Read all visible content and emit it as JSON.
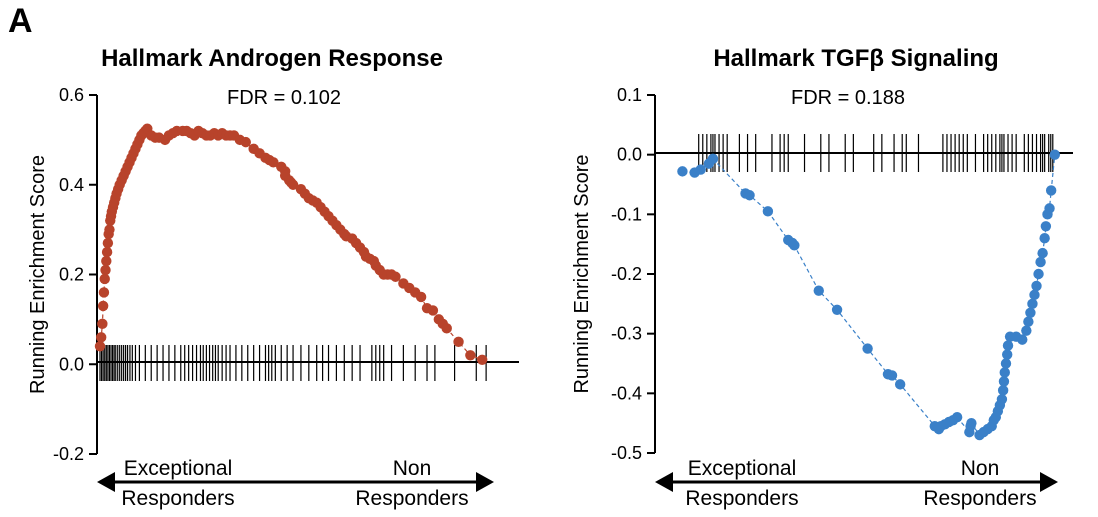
{
  "panel_label": "A",
  "colors": {
    "left": "#b8432b",
    "right": "#3a80c8",
    "axis": "#000000"
  },
  "chart_data": [
    {
      "type": "scatter",
      "title": "Hallmark Androgen Response",
      "annotation": "FDR = 0.102",
      "ylabel": "Running Enrichment Score",
      "ylim": [
        -0.2,
        0.6
      ],
      "yticks": [
        "0.6",
        "0.4",
        "0.2",
        "0.0",
        "-0.2"
      ],
      "xlim": [
        0,
        1
      ],
      "x_left_label": [
        "Exceptional",
        "Responders"
      ],
      "x_right_label": [
        "Non",
        "Responders"
      ],
      "color": "#b8432b",
      "points": [
        [
          0.0,
          0.04
        ],
        [
          0.003,
          0.06
        ],
        [
          0.006,
          0.09
        ],
        [
          0.008,
          0.13
        ],
        [
          0.01,
          0.16
        ],
        [
          0.012,
          0.19
        ],
        [
          0.014,
          0.21
        ],
        [
          0.016,
          0.23
        ],
        [
          0.018,
          0.25
        ],
        [
          0.02,
          0.27
        ],
        [
          0.022,
          0.29
        ],
        [
          0.024,
          0.3
        ],
        [
          0.026,
          0.32
        ],
        [
          0.028,
          0.33
        ],
        [
          0.03,
          0.34
        ],
        [
          0.033,
          0.35
        ],
        [
          0.036,
          0.36
        ],
        [
          0.039,
          0.37
        ],
        [
          0.042,
          0.38
        ],
        [
          0.046,
          0.39
        ],
        [
          0.05,
          0.4
        ],
        [
          0.055,
          0.41
        ],
        [
          0.06,
          0.42
        ],
        [
          0.065,
          0.43
        ],
        [
          0.07,
          0.44
        ],
        [
          0.075,
          0.45
        ],
        [
          0.08,
          0.46
        ],
        [
          0.085,
          0.47
        ],
        [
          0.09,
          0.48
        ],
        [
          0.095,
          0.49
        ],
        [
          0.1,
          0.5
        ],
        [
          0.105,
          0.51
        ],
        [
          0.11,
          0.515
        ],
        [
          0.115,
          0.52
        ],
        [
          0.12,
          0.525
        ],
        [
          0.13,
          0.51
        ],
        [
          0.14,
          0.505
        ],
        [
          0.15,
          0.505
        ],
        [
          0.165,
          0.5
        ],
        [
          0.175,
          0.51
        ],
        [
          0.185,
          0.515
        ],
        [
          0.195,
          0.52
        ],
        [
          0.21,
          0.52
        ],
        [
          0.22,
          0.52
        ],
        [
          0.23,
          0.515
        ],
        [
          0.24,
          0.51
        ],
        [
          0.25,
          0.52
        ],
        [
          0.26,
          0.515
        ],
        [
          0.27,
          0.51
        ],
        [
          0.28,
          0.51
        ],
        [
          0.29,
          0.515
        ],
        [
          0.3,
          0.51
        ],
        [
          0.31,
          0.515
        ],
        [
          0.32,
          0.51
        ],
        [
          0.33,
          0.51
        ],
        [
          0.34,
          0.51
        ],
        [
          0.355,
          0.5
        ],
        [
          0.37,
          0.495
        ],
        [
          0.39,
          0.48
        ],
        [
          0.405,
          0.47
        ],
        [
          0.42,
          0.46
        ],
        [
          0.43,
          0.455
        ],
        [
          0.44,
          0.45
        ],
        [
          0.46,
          0.44
        ],
        [
          0.47,
          0.43
        ],
        [
          0.47,
          0.42
        ],
        [
          0.48,
          0.41
        ],
        [
          0.485,
          0.405
        ],
        [
          0.49,
          0.4
        ],
        [
          0.51,
          0.39
        ],
        [
          0.52,
          0.38
        ],
        [
          0.53,
          0.37
        ],
        [
          0.54,
          0.365
        ],
        [
          0.55,
          0.36
        ],
        [
          0.56,
          0.35
        ],
        [
          0.57,
          0.34
        ],
        [
          0.58,
          0.33
        ],
        [
          0.59,
          0.32
        ],
        [
          0.6,
          0.31
        ],
        [
          0.61,
          0.3
        ],
        [
          0.62,
          0.29
        ],
        [
          0.625,
          0.285
        ],
        [
          0.64,
          0.28
        ],
        [
          0.65,
          0.27
        ],
        [
          0.66,
          0.26
        ],
        [
          0.67,
          0.25
        ],
        [
          0.675,
          0.24
        ],
        [
          0.685,
          0.235
        ],
        [
          0.695,
          0.23
        ],
        [
          0.7,
          0.22
        ],
        [
          0.71,
          0.21
        ],
        [
          0.72,
          0.2
        ],
        [
          0.73,
          0.2
        ],
        [
          0.74,
          0.2
        ],
        [
          0.75,
          0.195
        ],
        [
          0.77,
          0.18
        ],
        [
          0.785,
          0.17
        ],
        [
          0.8,
          0.16
        ],
        [
          0.815,
          0.15
        ],
        [
          0.83,
          0.125
        ],
        [
          0.845,
          0.12
        ],
        [
          0.86,
          0.1
        ],
        [
          0.87,
          0.09
        ],
        [
          0.88,
          0.08
        ],
        [
          0.91,
          0.05
        ],
        [
          0.94,
          0.02
        ],
        [
          0.97,
          0.01
        ]
      ],
      "hits": [
        0.0,
        0.004,
        0.008,
        0.012,
        0.016,
        0.02,
        0.024,
        0.028,
        0.032,
        0.036,
        0.04,
        0.045,
        0.05,
        0.055,
        0.06,
        0.065,
        0.07,
        0.076,
        0.082,
        0.09,
        0.1,
        0.115,
        0.13,
        0.145,
        0.16,
        0.175,
        0.19,
        0.205,
        0.215,
        0.225,
        0.235,
        0.245,
        0.255,
        0.262,
        0.27,
        0.278,
        0.286,
        0.293,
        0.3,
        0.31,
        0.32,
        0.33,
        0.345,
        0.36,
        0.375,
        0.39,
        0.405,
        0.42,
        0.428,
        0.436,
        0.445,
        0.46,
        0.475,
        0.49,
        0.51,
        0.53,
        0.55,
        0.565,
        0.58,
        0.6,
        0.62,
        0.64,
        0.66,
        0.69,
        0.7,
        0.71,
        0.72,
        0.74,
        0.77,
        0.8,
        0.83,
        0.85,
        0.9,
        0.955,
        0.98
      ]
    },
    {
      "type": "scatter",
      "title": "Hallmark TGFβ Signaling",
      "annotation": "FDR = 0.188",
      "ylabel": "Running Enrichment Score",
      "ylim": [
        -0.5,
        0.1
      ],
      "yticks": [
        "0.1",
        "0.0",
        "-0.1",
        "-0.2",
        "-0.3",
        "-0.4",
        "-0.5"
      ],
      "xlim": [
        0,
        1
      ],
      "x_left_label": [
        "Exceptional",
        "Responders"
      ],
      "x_right_label": [
        "Non",
        "Responders"
      ],
      "color": "#3a80c8",
      "points": [
        [
          0.06,
          -0.028
        ],
        [
          0.09,
          -0.03
        ],
        [
          0.105,
          -0.025
        ],
        [
          0.125,
          -0.015
        ],
        [
          0.135,
          -0.007
        ],
        [
          0.215,
          -0.065
        ],
        [
          0.225,
          -0.068
        ],
        [
          0.27,
          -0.095
        ],
        [
          0.32,
          -0.143
        ],
        [
          0.33,
          -0.148
        ],
        [
          0.335,
          -0.152
        ],
        [
          0.395,
          -0.228
        ],
        [
          0.44,
          -0.26
        ],
        [
          0.515,
          -0.325
        ],
        [
          0.565,
          -0.368
        ],
        [
          0.575,
          -0.37
        ],
        [
          0.595,
          -0.385
        ],
        [
          0.68,
          -0.455
        ],
        [
          0.69,
          -0.46
        ],
        [
          0.695,
          -0.455
        ],
        [
          0.705,
          -0.452
        ],
        [
          0.715,
          -0.448
        ],
        [
          0.725,
          -0.445
        ],
        [
          0.735,
          -0.44
        ],
        [
          0.765,
          -0.465
        ],
        [
          0.768,
          -0.455
        ],
        [
          0.77,
          -0.45
        ],
        [
          0.79,
          -0.47
        ],
        [
          0.8,
          -0.465
        ],
        [
          0.81,
          -0.46
        ],
        [
          0.82,
          -0.455
        ],
        [
          0.825,
          -0.445
        ],
        [
          0.83,
          -0.44
        ],
        [
          0.835,
          -0.43
        ],
        [
          0.84,
          -0.42
        ],
        [
          0.845,
          -0.41
        ],
        [
          0.848,
          -0.395
        ],
        [
          0.85,
          -0.38
        ],
        [
          0.852,
          -0.365
        ],
        [
          0.855,
          -0.35
        ],
        [
          0.858,
          -0.335
        ],
        [
          0.86,
          -0.32
        ],
        [
          0.865,
          -0.305
        ],
        [
          0.88,
          -0.305
        ],
        [
          0.895,
          -0.31
        ],
        [
          0.905,
          -0.295
        ],
        [
          0.91,
          -0.28
        ],
        [
          0.915,
          -0.265
        ],
        [
          0.92,
          -0.25
        ],
        [
          0.925,
          -0.235
        ],
        [
          0.93,
          -0.22
        ],
        [
          0.935,
          -0.2
        ],
        [
          0.94,
          -0.18
        ],
        [
          0.945,
          -0.165
        ],
        [
          0.95,
          -0.14
        ],
        [
          0.953,
          -0.12
        ],
        [
          0.957,
          -0.1
        ],
        [
          0.962,
          -0.09
        ],
        [
          0.966,
          -0.06
        ],
        [
          0.975,
          0.0
        ]
      ],
      "hits": [
        0.1,
        0.11,
        0.12,
        0.13,
        0.135,
        0.14,
        0.15,
        0.16,
        0.17,
        0.2,
        0.22,
        0.24,
        0.28,
        0.3,
        0.31,
        0.32,
        0.36,
        0.4,
        0.42,
        0.46,
        0.48,
        0.53,
        0.55,
        0.58,
        0.6,
        0.61,
        0.64,
        0.7,
        0.71,
        0.72,
        0.73,
        0.74,
        0.75,
        0.76,
        0.78,
        0.8,
        0.81,
        0.82,
        0.83,
        0.84,
        0.845,
        0.85,
        0.86,
        0.87,
        0.88,
        0.9,
        0.91,
        0.92,
        0.93,
        0.94,
        0.945,
        0.95,
        0.96,
        0.965,
        0.97
      ]
    }
  ]
}
